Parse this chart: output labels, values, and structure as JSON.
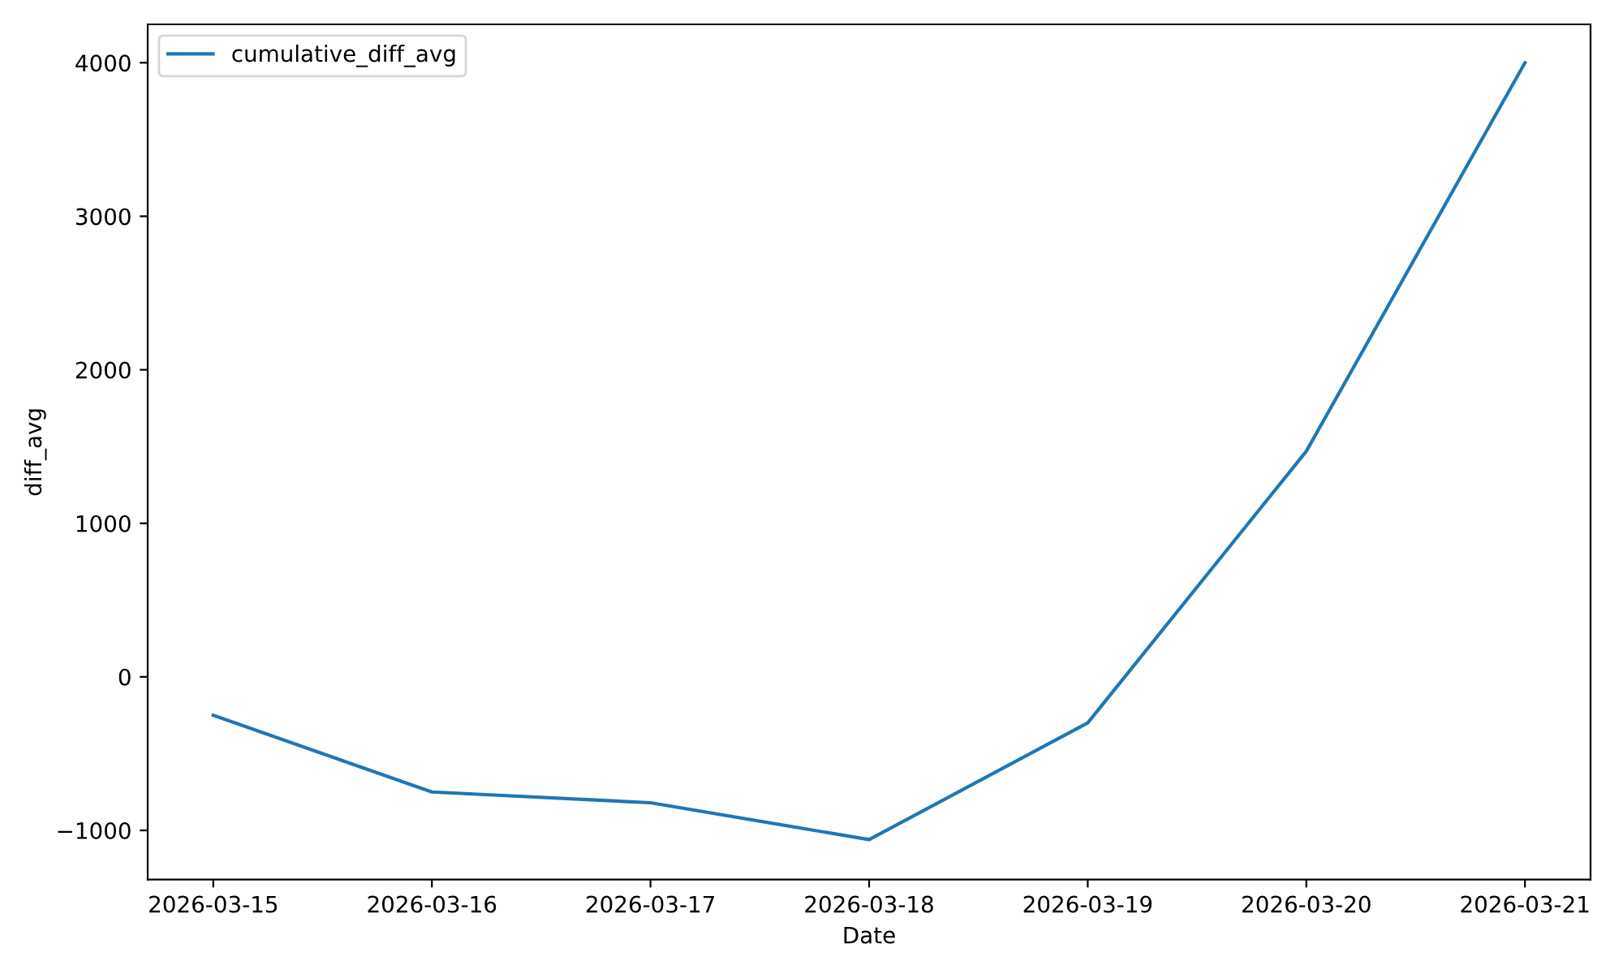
{
  "chart_data": {
    "type": "line",
    "xlabel": "Date",
    "ylabel": "diff_avg",
    "x": [
      "2026-03-15",
      "2026-03-16",
      "2026-03-17",
      "2026-03-18",
      "2026-03-19",
      "2026-03-20",
      "2026-03-21"
    ],
    "series": [
      {
        "name": "cumulative_diff_avg",
        "color": "#1f77b4",
        "values": [
          -250,
          -750,
          -820,
          -1060,
          -300,
          1470,
          4000
        ]
      }
    ],
    "xlim": [
      "2026-03-14T16:48",
      "2026-03-21T07:12"
    ],
    "xticks": [
      "2026-03-15",
      "2026-03-16",
      "2026-03-17",
      "2026-03-18",
      "2026-03-19",
      "2026-03-20",
      "2026-03-21"
    ],
    "ylim": [
      -1320,
      4250
    ],
    "yticks": [
      -1000,
      0,
      1000,
      2000,
      3000,
      4000
    ],
    "legend": "top left",
    "grid": false,
    "marker": "none",
    "line_style": "solid"
  }
}
